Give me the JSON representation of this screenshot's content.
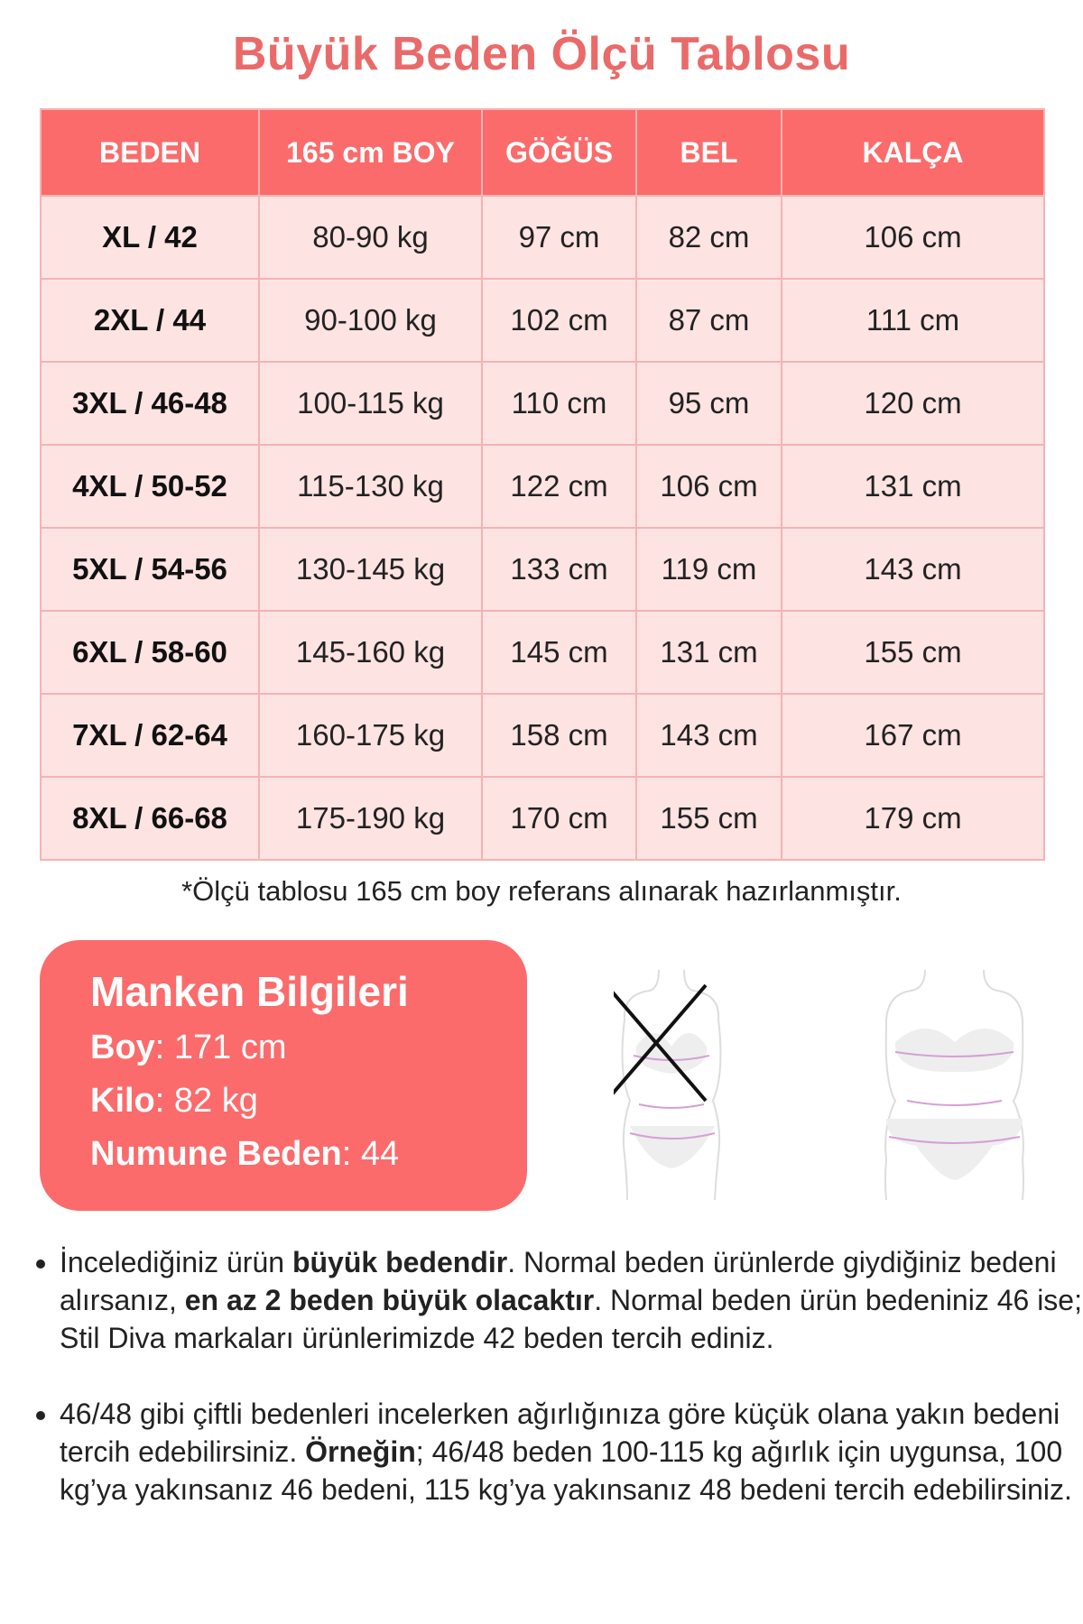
{
  "title": "Büyük Beden Ölçü Tablosu",
  "table": {
    "headers": [
      "BEDEN",
      "165 cm BOY",
      "GÖĞÜS",
      "BEL",
      "KALÇA"
    ],
    "rows": [
      [
        "XL / 42",
        "80-90 kg",
        "97 cm",
        "82 cm",
        "106 cm"
      ],
      [
        "2XL / 44",
        "90-100 kg",
        "102 cm",
        "87 cm",
        "111 cm"
      ],
      [
        "3XL / 46-48",
        "100-115 kg",
        "110 cm",
        "95 cm",
        "120 cm"
      ],
      [
        "4XL / 50-52",
        "115-130 kg",
        "122 cm",
        "106 cm",
        "131 cm"
      ],
      [
        "5XL / 54-56",
        "130-145 kg",
        "133 cm",
        "119 cm",
        "143 cm"
      ],
      [
        "6XL / 58-60",
        "145-160 kg",
        "145 cm",
        "131 cm",
        "155 cm"
      ],
      [
        "7XL / 62-64",
        "160-175 kg",
        "158 cm",
        "143 cm",
        "167 cm"
      ],
      [
        "8XL / 66-68",
        "175-190 kg",
        "170 cm",
        "155 cm",
        "179 cm"
      ]
    ]
  },
  "note": "*Ölçü tablosu 165 cm boy referans alınarak hazırlanmıştır.",
  "manken": {
    "title": "Manken Bilgileri",
    "boy_label": "Boy",
    "boy_value": ": 171 cm",
    "kilo_label": "Kilo",
    "kilo_value": ": 82 kg",
    "numune_label": "Numune Beden",
    "numune_value": ": 44"
  },
  "figures": {
    "wrong": "crossed-out-body-figure",
    "right": "body-figure"
  },
  "colors": {
    "accent": "#fb6b6b",
    "title": "#ea6a6a",
    "cell": "#fde3e2"
  },
  "bullets": [
    {
      "t1": "İncelediğiniz ürün ",
      "b1": "büyük bedendir",
      "t2": ". Normal beden ürünlerde giydiğiniz bedeni alırsanız, ",
      "b2": "en az 2 beden büyük olacaktır",
      "t3": ". Normal beden ürün bedeniniz 46 ise; Stil Diva markaları ürünlerimizde 42 beden tercih ediniz."
    },
    {
      "t1": "46/48 gibi çiftli bedenleri incelerken ağırlığınıza göre küçük olana yakın bedeni tercih edebilirsiniz. ",
      "b1": "Örneğin",
      "t2": "; 46/48 beden 100-115 kg ağırlık için uygunsa, 100 kg’ya yakınsanız 46 bedeni, 115 kg’ya yakınsanız 48 bedeni tercih edebilirsiniz."
    }
  ]
}
